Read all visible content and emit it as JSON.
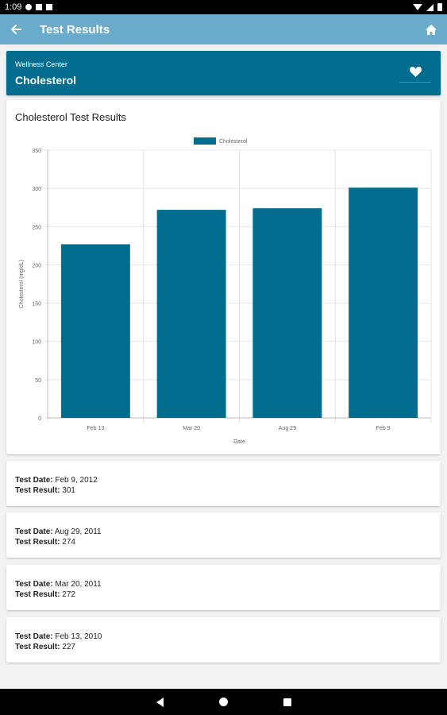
{
  "status_bar": {
    "time": "1:09"
  },
  "app_bar": {
    "title": "Test Results"
  },
  "header": {
    "subtitle": "Wellness Center",
    "title": "Cholesterol"
  },
  "chart_card": {
    "title": "Cholesterol Test Results"
  },
  "chart_data": {
    "type": "bar",
    "categories": [
      "Feb 13",
      "Mar 20",
      "Aug 29",
      "Feb 9"
    ],
    "series": [
      {
        "name": "Cholesterol",
        "values": [
          227,
          272,
          274,
          301
        ],
        "color": "#036d8f"
      }
    ],
    "xlabel": "Date",
    "ylabel": "Cholesterol (mg/dL)",
    "ylim": [
      0,
      350
    ],
    "yticks": [
      0,
      50,
      100,
      150,
      200,
      250,
      300,
      350
    ],
    "grid": true,
    "legend": "top-center"
  },
  "results": [
    {
      "date_label": "Test Date:",
      "date": "Feb 9, 2012",
      "result_label": "Test Result:",
      "result": "301"
    },
    {
      "date_label": "Test Date:",
      "date": "Aug 29, 2011",
      "result_label": "Test Result:",
      "result": "274"
    },
    {
      "date_label": "Test Date:",
      "date": "Mar 20, 2011",
      "result_label": "Test Result:",
      "result": "272"
    },
    {
      "date_label": "Test Date:",
      "date": "Feb 13, 2010",
      "result_label": "Test Result:",
      "result": "227"
    }
  ],
  "colors": {
    "app_bar": "#6aabcb",
    "accent": "#036d8f"
  }
}
